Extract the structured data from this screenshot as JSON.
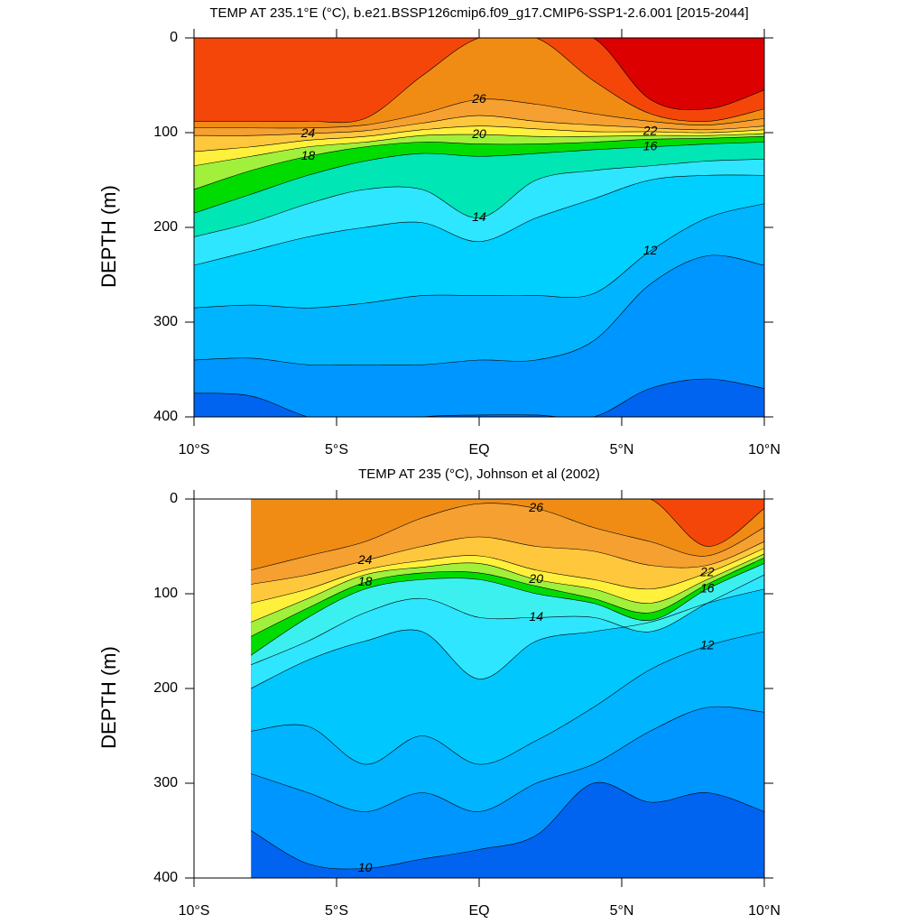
{
  "chart_data": [
    {
      "type": "contour",
      "title": "TEMP AT 235.1°E (°C), b.e21.BSSP126cmip6.f09_g17.CMIP6-SSP1-2.6.001 [2015-2044]",
      "y_label": "DEPTH (m)",
      "xlim": [
        -10,
        10
      ],
      "ylim": [
        400,
        0
      ],
      "xticks": [
        {
          "value": -10,
          "label": "10°S"
        },
        {
          "value": -5,
          "label": "5°S"
        },
        {
          "value": 0,
          "label": "EQ"
        },
        {
          "value": 5,
          "label": "5°N"
        },
        {
          "value": 10,
          "label": "10°N"
        }
      ],
      "yticks": [
        0,
        100,
        200,
        300,
        400
      ],
      "contour_label_step": 2,
      "bottom_color": "#0064f0",
      "x": [
        -10,
        -8,
        -6,
        -4,
        -2,
        0,
        2,
        4,
        6,
        8,
        10
      ],
      "series": [
        {
          "level": 10,
          "color": "#0096ff",
          "values": [
            375,
            378,
            400,
            410,
            400,
            398,
            398,
            400,
            370,
            360,
            370
          ]
        },
        {
          "level": 11,
          "color": "#00b4ff",
          "values": [
            340,
            338,
            345,
            345,
            345,
            340,
            340,
            320,
            260,
            230,
            240
          ]
        },
        {
          "level": 12,
          "color": "#00d0ff",
          "values": [
            285,
            282,
            285,
            280,
            272,
            272,
            272,
            270,
            225,
            190,
            175
          ]
        },
        {
          "level": 13,
          "color": "#2ee6ff",
          "values": [
            240,
            225,
            210,
            200,
            195,
            215,
            190,
            170,
            150,
            145,
            145
          ]
        },
        {
          "level": 14,
          "color": "#00e6b4",
          "values": [
            210,
            195,
            175,
            160,
            160,
            190,
            150,
            140,
            135,
            130,
            128
          ]
        },
        {
          "level": 16,
          "color": "#00dc00",
          "values": [
            185,
            165,
            145,
            130,
            122,
            125,
            122,
            118,
            115,
            112,
            110
          ]
        },
        {
          "level": 18,
          "color": "#a0f03c",
          "values": [
            160,
            140,
            125,
            115,
            110,
            112,
            112,
            110,
            107,
            106,
            104
          ]
        },
        {
          "level": 20,
          "color": "#fff03c",
          "values": [
            135,
            125,
            115,
            110,
            103,
            102,
            104,
            104,
            103,
            103,
            101
          ]
        },
        {
          "level": 22,
          "color": "#ffc83c",
          "values": [
            120,
            115,
            108,
            104,
            97,
            93,
            96,
            99,
            99,
            100,
            97
          ]
        },
        {
          "level": 24,
          "color": "#f5a030",
          "values": [
            103,
            103,
            101,
            98,
            90,
            82,
            88,
            92,
            95,
            97,
            93
          ]
        },
        {
          "level": 26,
          "color": "#f08c14",
          "values": [
            95,
            95,
            95,
            92,
            80,
            65,
            70,
            80,
            88,
            92,
            85
          ]
        },
        {
          "level": 27,
          "color": "#f5460a",
          "values": [
            88,
            88,
            88,
            85,
            40,
            0,
            0,
            45,
            80,
            88,
            75
          ]
        },
        {
          "level": 28,
          "color": "#ff1400",
          "values": [
            0,
            0,
            0,
            0,
            0,
            0,
            0,
            0,
            65,
            75,
            55
          ]
        }
      ],
      "surface_color": "#dc0000"
    },
    {
      "type": "contour",
      "title": "TEMP AT 235 (°C), Johnson et al (2002)",
      "y_label": "DEPTH (m)",
      "xlim": [
        -10,
        10
      ],
      "ylim": [
        400,
        0
      ],
      "xticks": [
        {
          "value": -10,
          "label": "10°S"
        },
        {
          "value": -5,
          "label": "5°S"
        },
        {
          "value": 0,
          "label": "EQ"
        },
        {
          "value": 5,
          "label": "5°N"
        },
        {
          "value": 10,
          "label": "10°N"
        }
      ],
      "yticks": [
        0,
        100,
        200,
        300,
        400
      ],
      "contour_label_step": 2,
      "bottom_color": "#0064f0",
      "x": [
        -8,
        -6,
        -4,
        -2,
        0,
        2,
        4,
        6,
        8,
        10
      ],
      "series": [
        {
          "level": 10,
          "color": "#0096ff",
          "values": [
            350,
            385,
            390,
            380,
            370,
            355,
            300,
            320,
            310,
            330
          ]
        },
        {
          "level": 11,
          "color": "#00b4ff",
          "values": [
            290,
            310,
            330,
            310,
            330,
            300,
            280,
            245,
            220,
            225
          ]
        },
        {
          "level": 12,
          "color": "#00c8ff",
          "values": [
            245,
            240,
            280,
            250,
            280,
            255,
            220,
            180,
            155,
            140
          ]
        },
        {
          "level": 13,
          "color": "#2ee6ff",
          "values": [
            200,
            170,
            150,
            140,
            190,
            150,
            140,
            130,
            110,
            95
          ]
        },
        {
          "level": 14,
          "color": "#3cf0f0",
          "values": [
            175,
            150,
            120,
            105,
            125,
            125,
            125,
            140,
            110,
            80
          ]
        },
        {
          "level": 16,
          "color": "#00dc00",
          "values": [
            165,
            125,
            95,
            85,
            85,
            100,
            110,
            128,
            95,
            68
          ]
        },
        {
          "level": 18,
          "color": "#a0f03c",
          "values": [
            145,
            115,
            88,
            78,
            78,
            92,
            105,
            120,
            90,
            62
          ]
        },
        {
          "level": 20,
          "color": "#fff03c",
          "values": [
            130,
            105,
            80,
            72,
            68,
            85,
            95,
            110,
            85,
            58
          ]
        },
        {
          "level": 22,
          "color": "#ffc83c",
          "values": [
            110,
            95,
            75,
            65,
            60,
            75,
            85,
            95,
            78,
            52
          ]
        },
        {
          "level": 24,
          "color": "#f5a030",
          "values": [
            90,
            80,
            65,
            50,
            40,
            50,
            55,
            70,
            70,
            45
          ]
        },
        {
          "level": 26,
          "color": "#f08c14",
          "values": [
            75,
            60,
            45,
            20,
            5,
            10,
            30,
            45,
            60,
            30
          ]
        },
        {
          "level": 27,
          "color": "#f5460a",
          "values": [
            0,
            0,
            0,
            0,
            0,
            0,
            0,
            0,
            50,
            10
          ]
        }
      ],
      "surface_color": "#f5460a"
    }
  ]
}
